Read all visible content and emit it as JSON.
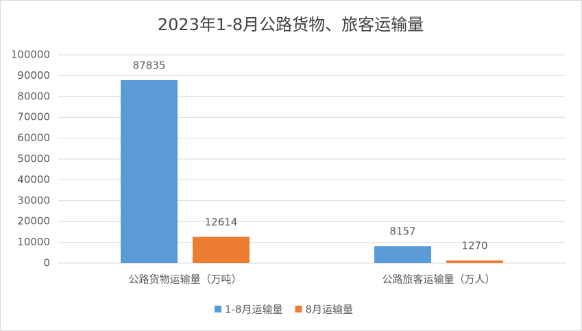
{
  "chart_data": {
    "type": "bar",
    "title": "2023年1-8月公路货物、旅客运输量",
    "categories": [
      "公路货物运输量（万吨）",
      "公路旅客运输量（万人）"
    ],
    "series": [
      {
        "name": "1-8月运输量",
        "color": "#5b9bd5",
        "values": [
          87835,
          8157
        ]
      },
      {
        "name": "8月运输量",
        "color": "#ed7d31",
        "values": [
          12614,
          1270
        ]
      }
    ],
    "ylim": [
      0,
      100000
    ],
    "yticks": [
      0,
      10000,
      20000,
      30000,
      40000,
      50000,
      60000,
      70000,
      80000,
      90000,
      100000
    ],
    "grid": true,
    "legend": "bottom"
  }
}
